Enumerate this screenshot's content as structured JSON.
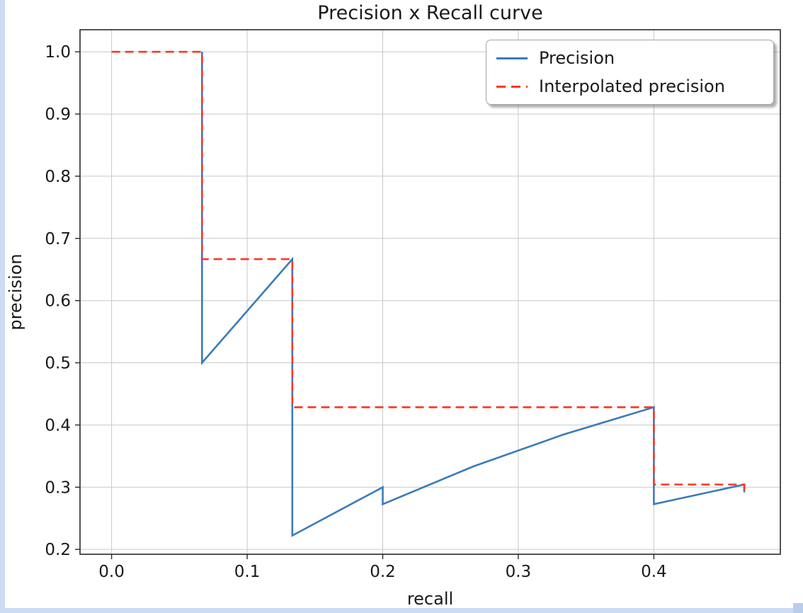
{
  "viewer": {
    "edge_strip_color": "#cddcf2",
    "corner_color": "#b7cdea"
  },
  "chart_data": {
    "type": "line",
    "title": "Precision x Recall curve",
    "xlabel": "recall",
    "ylabel": "precision",
    "xlim": [
      -0.0233,
      0.4933
    ],
    "ylim": [
      0.1922,
      1.0355
    ],
    "grid": true,
    "x_ticks": {
      "values": [
        0.0,
        0.1,
        0.2,
        0.3,
        0.4
      ],
      "labels": [
        "0.0",
        "0.1",
        "0.2",
        "0.3",
        "0.4"
      ]
    },
    "y_ticks": {
      "values": [
        0.2,
        0.3,
        0.4,
        0.5,
        0.6,
        0.7,
        0.8,
        0.9,
        1.0
      ],
      "labels": [
        "0.2",
        "0.3",
        "0.4",
        "0.5",
        "0.6",
        "0.7",
        "0.8",
        "0.9",
        "1.0"
      ]
    },
    "style": {
      "grid_color": "#c8c8c8",
      "frame_color": "#2a2a2a",
      "text_color": "#1a1a1a",
      "background": "#ffffff",
      "legend_border_color": "#a6a6a6"
    },
    "legend": {
      "position": "upper right",
      "entries": [
        {
          "label": "Precision",
          "style": "solid",
          "color": "#3a7cb8"
        },
        {
          "label": "Interpolated precision",
          "style": "dashed",
          "color": "#f93822"
        }
      ]
    },
    "series": [
      {
        "name": "Precision",
        "color": "#3a7cb8",
        "style": "solid",
        "width": 2.6,
        "points": [
          [
            0.0667,
            1.0
          ],
          [
            0.0667,
            0.5
          ],
          [
            0.1333,
            0.6667
          ],
          [
            0.1333,
            0.5
          ],
          [
            0.1333,
            0.4
          ],
          [
            0.1333,
            0.3333
          ],
          [
            0.1333,
            0.2857
          ],
          [
            0.1333,
            0.25
          ],
          [
            0.1333,
            0.2222
          ],
          [
            0.2,
            0.3
          ],
          [
            0.2,
            0.2727
          ],
          [
            0.2667,
            0.3333
          ],
          [
            0.3333,
            0.3846
          ],
          [
            0.4,
            0.4286
          ],
          [
            0.4,
            0.4
          ],
          [
            0.4,
            0.375
          ],
          [
            0.4,
            0.3529
          ],
          [
            0.4,
            0.3333
          ],
          [
            0.4,
            0.3158
          ],
          [
            0.4,
            0.3
          ],
          [
            0.4,
            0.2857
          ],
          [
            0.4,
            0.2727
          ],
          [
            0.4667,
            0.3043
          ],
          [
            0.4667,
            0.2917
          ]
        ]
      },
      {
        "name": "Interpolated precision",
        "color": "#f93822",
        "style": "dashed",
        "width": 2.6,
        "dash": [
          12,
          7
        ],
        "points": [
          [
            0.0,
            1.0
          ],
          [
            0.0667,
            1.0
          ],
          [
            0.0667,
            0.6667
          ],
          [
            0.1333,
            0.6667
          ],
          [
            0.1333,
            0.4286
          ],
          [
            0.4,
            0.4286
          ],
          [
            0.4,
            0.3043
          ],
          [
            0.4667,
            0.3043
          ],
          [
            0.4667,
            0.2917
          ]
        ]
      }
    ]
  }
}
